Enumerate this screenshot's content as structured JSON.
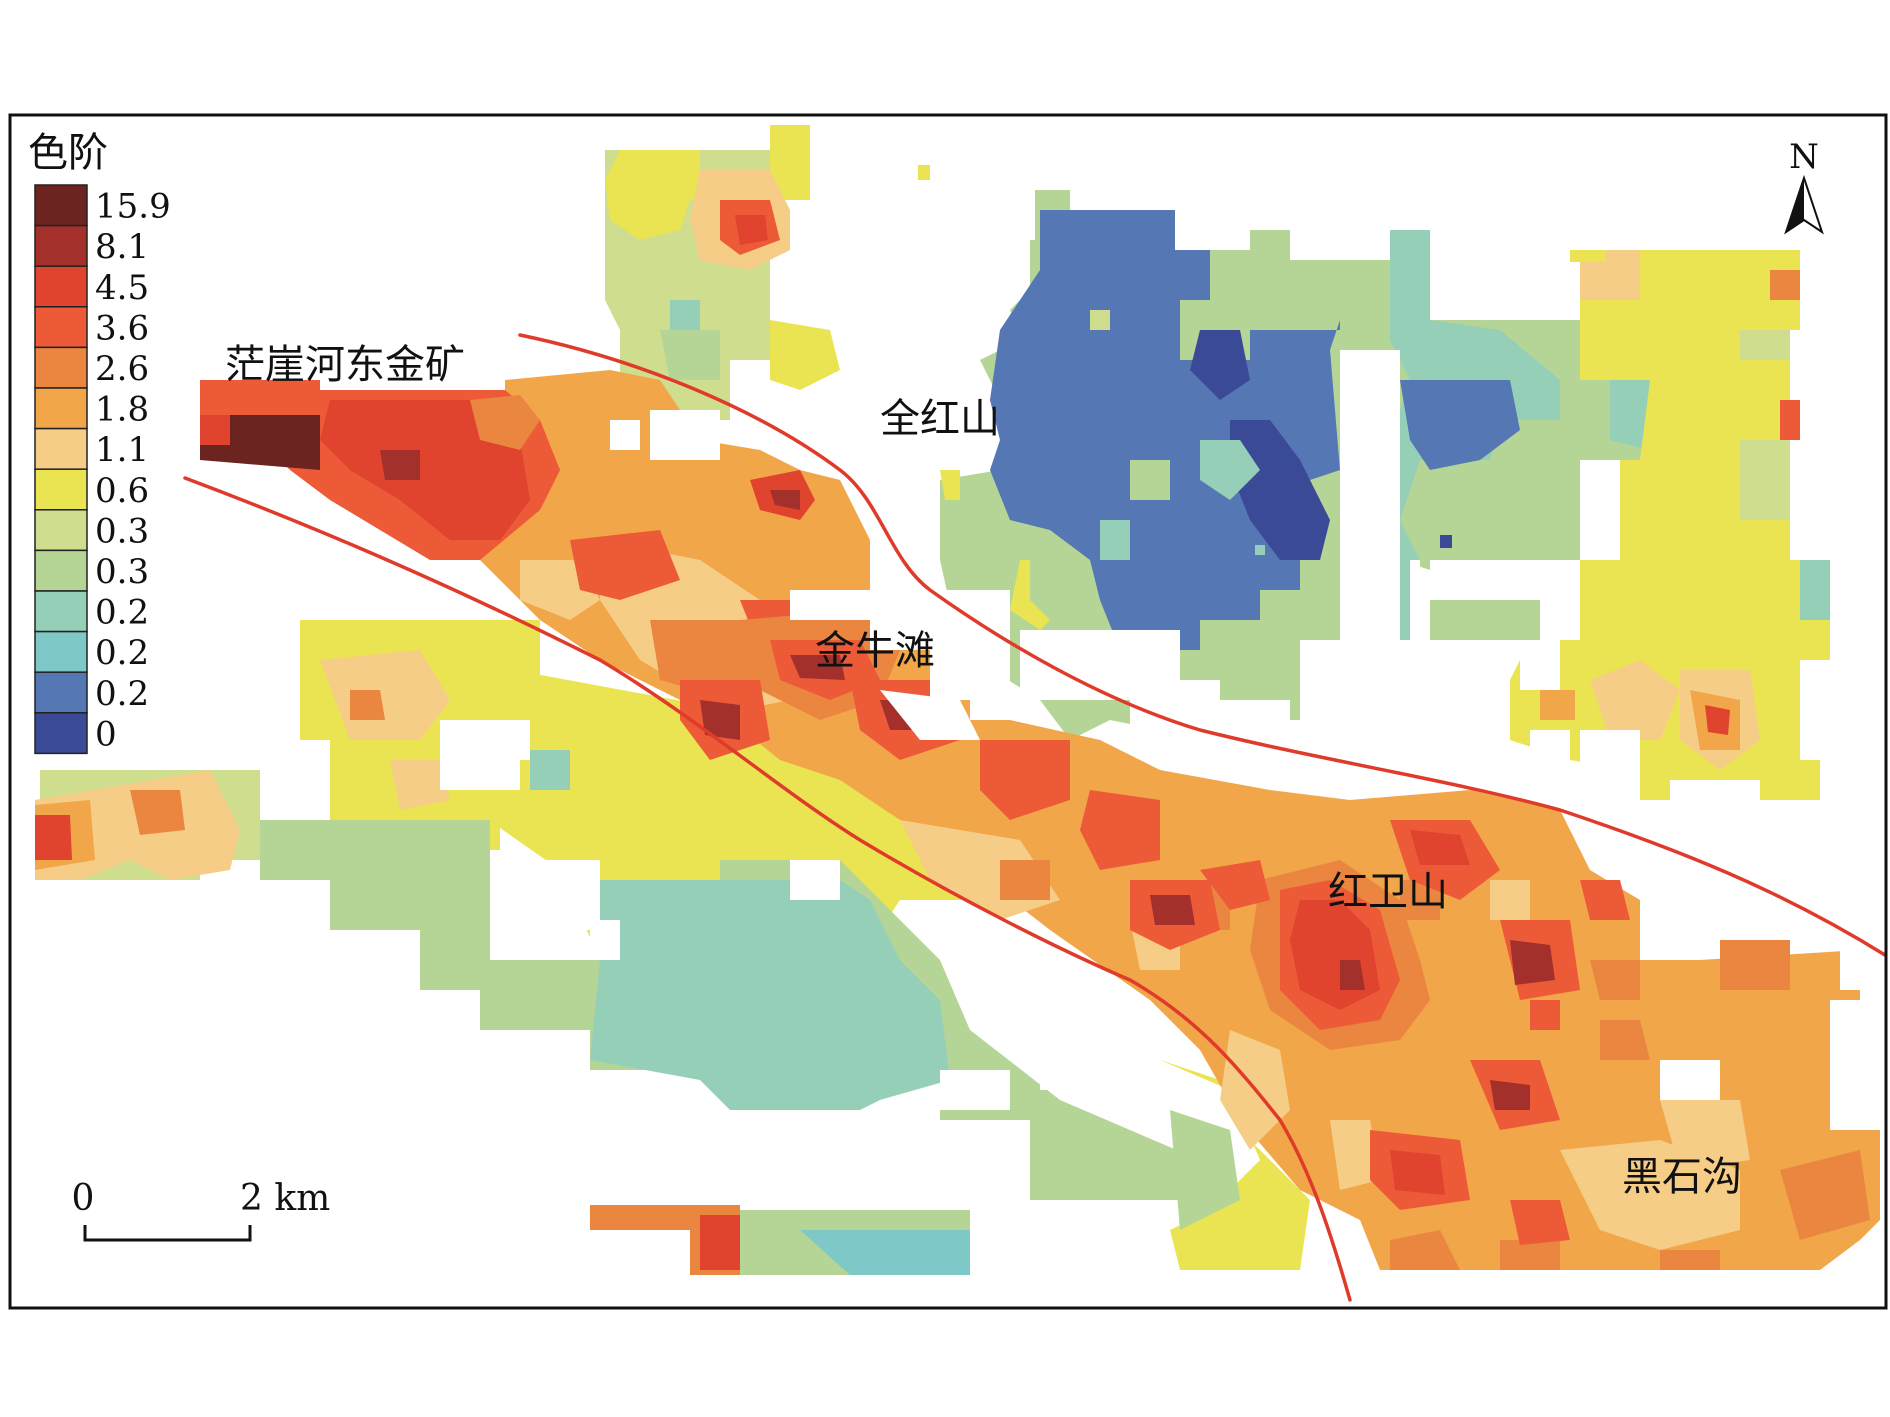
{
  "legend": {
    "title": "色阶",
    "items": [
      {
        "label": "15.9",
        "color": "#6b2420"
      },
      {
        "label": "8.1",
        "color": "#a3302a"
      },
      {
        "label": "4.5",
        "color": "#e0432e"
      },
      {
        "label": "3.6",
        "color": "#ec5a38"
      },
      {
        "label": "2.6",
        "color": "#ea8640"
      },
      {
        "label": "1.8",
        "color": "#f2a64a"
      },
      {
        "label": "1.1",
        "color": "#f6cd86"
      },
      {
        "label": "0.6",
        "color": "#ebe452"
      },
      {
        "label": "0.3",
        "color": "#cedd8e"
      },
      {
        "label": "0.3",
        "color": "#b4d596"
      },
      {
        "label": "0.2",
        "color": "#95cfb7"
      },
      {
        "label": "0.2",
        "color": "#7fc8c8"
      },
      {
        "label": "0.2",
        "color": "#5577b4"
      },
      {
        "label": "0",
        "color": "#3a4a96"
      }
    ]
  },
  "north_arrow": {
    "label": "N"
  },
  "scale_bar": {
    "start_label": "0",
    "end_label": "2 km"
  },
  "place_labels": {
    "mangyahedong": "茫崖河东金矿",
    "quanhongshan": "全红山",
    "jinniutan": "金牛滩",
    "hongweishan": "红卫山",
    "heishigou": "黑石沟"
  },
  "fault_color": "#e03a2a"
}
